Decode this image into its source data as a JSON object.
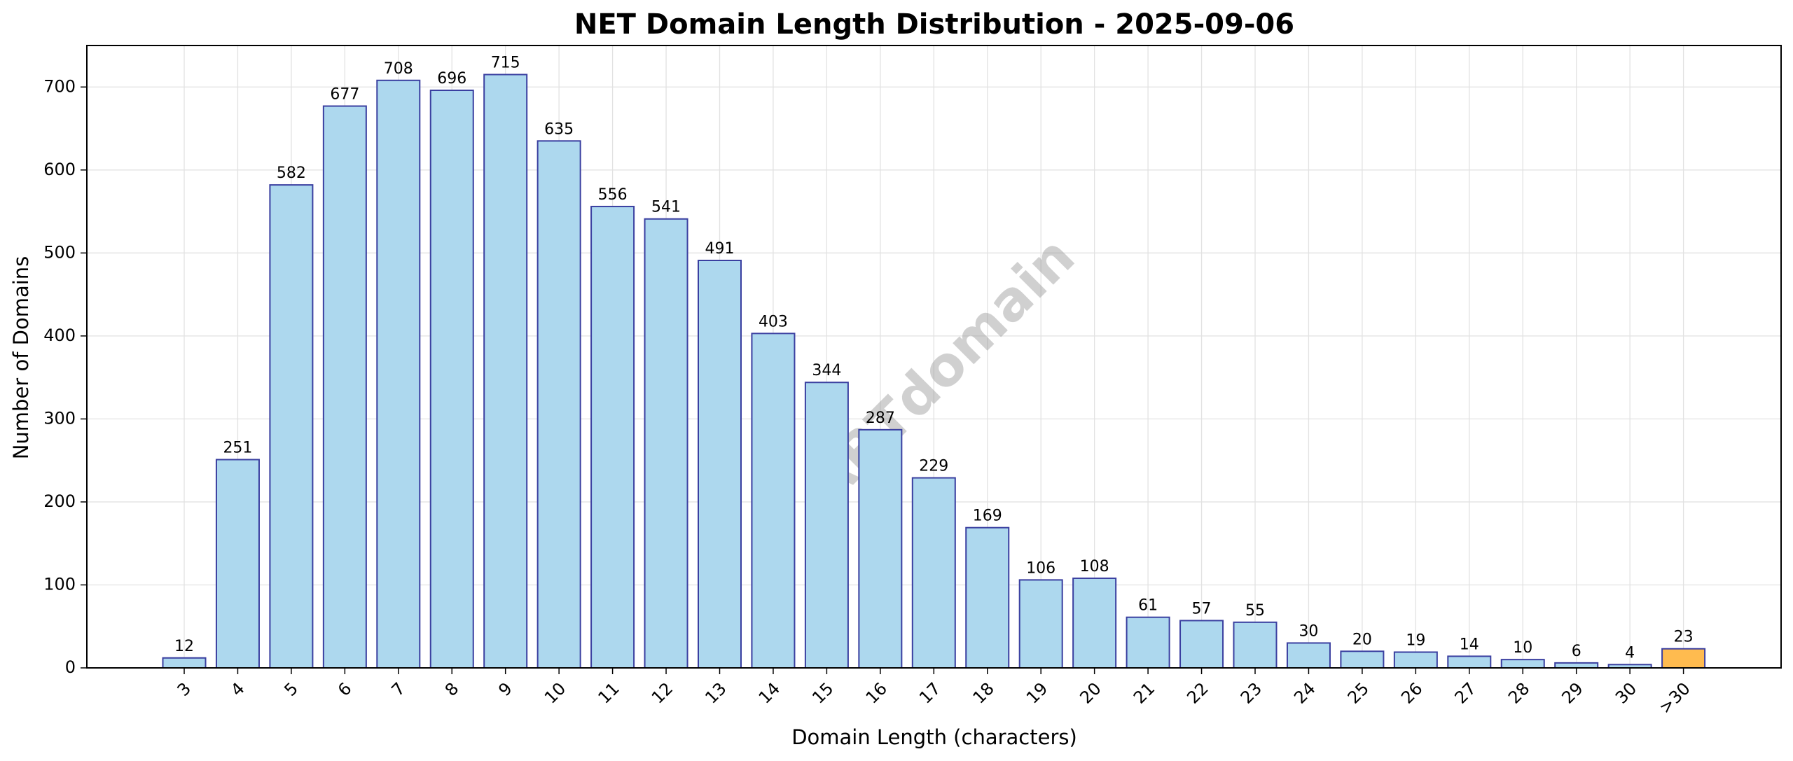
{
  "chart_data": {
    "type": "bar",
    "title": "NET Domain Length Distribution - 2025-09-06",
    "xlabel": "Domain Length (characters)",
    "ylabel": "Number of Domains",
    "categories": [
      "3",
      "4",
      "5",
      "6",
      "7",
      "8",
      "9",
      "10",
      "11",
      "12",
      "13",
      "14",
      "15",
      "16",
      "17",
      "18",
      "19",
      "20",
      "21",
      "22",
      "23",
      "24",
      "25",
      "26",
      "27",
      "28",
      "29",
      "30",
      ">30"
    ],
    "values": [
      12,
      251,
      582,
      677,
      708,
      696,
      715,
      635,
      556,
      541,
      491,
      403,
      344,
      287,
      229,
      169,
      106,
      108,
      61,
      57,
      55,
      30,
      20,
      19,
      14,
      10,
      6,
      4,
      23
    ],
    "highlight_category": ">30",
    "ylim": [
      0,
      750
    ],
    "yticks": [
      0,
      100,
      200,
      300,
      400,
      500,
      600,
      700
    ],
    "grid": true,
    "watermark": "ABTdomain",
    "colors": {
      "bar_fill": "#add8ee",
      "bar_edge": "#3a3fa0",
      "highlight_fill": "#ffbb4f",
      "highlight_edge": "#3a3fa0"
    }
  }
}
